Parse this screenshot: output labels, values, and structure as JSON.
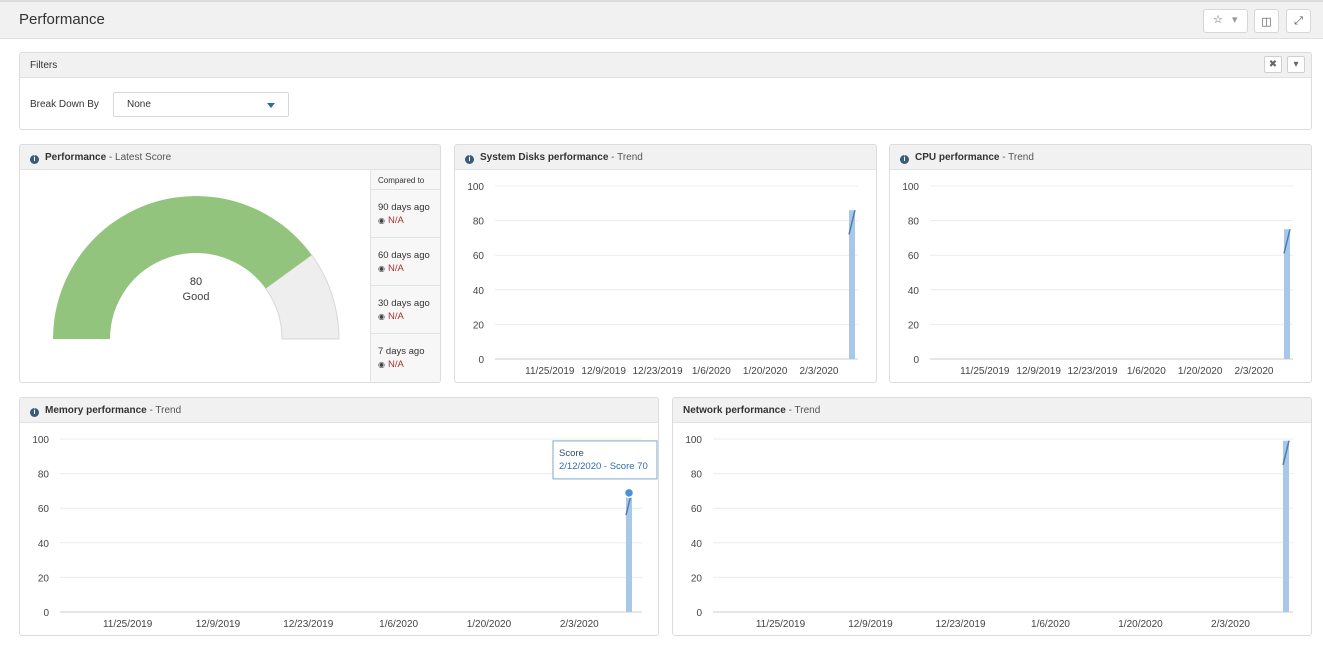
{
  "page": {
    "title": "Performance"
  },
  "toolbar": {
    "star_icon": "star-icon",
    "dropdown_icon": "chevron-down-icon",
    "layout_icon": "columns-icon",
    "expand_icon": "expand-icon"
  },
  "filters": {
    "title": "Filters",
    "breakdown_label": "Break Down By",
    "breakdown_value": "None"
  },
  "gauge_panel": {
    "title": "Performance",
    "subtitle": " - Latest Score",
    "score": "80",
    "score_label": "Good",
    "score_value": 80,
    "gauge_max": 100,
    "compare_header": "Compared to",
    "compare": [
      {
        "label": "90 days ago",
        "value": "N/A"
      },
      {
        "label": "60 days ago",
        "value": "N/A"
      },
      {
        "label": "30 days ago",
        "value": "N/A"
      },
      {
        "label": "7 days ago",
        "value": "N/A"
      }
    ]
  },
  "tooltip": {
    "title": "Score",
    "text": "2/12/2020 - Score 70"
  },
  "colors": {
    "gauge_fill": "#93c47d",
    "gauge_rest": "#eeeeee",
    "bar": "#a9c8e8",
    "line": "#4a7db3"
  },
  "chart_data": [
    {
      "id": "disks",
      "title": "System Disks performance",
      "subtitle": " - Trend",
      "type": "area",
      "x": [
        "11/25/2019",
        "12/9/2019",
        "12/23/2019",
        "1/6/2020",
        "1/20/2020",
        "2/3/2020"
      ],
      "yticks": [
        "100",
        "80",
        "60",
        "40",
        "20",
        "0"
      ],
      "ylim": [
        0,
        100
      ],
      "last_point": {
        "date": "2/12/2020",
        "value": 86
      }
    },
    {
      "id": "cpu",
      "title": "CPU performance",
      "subtitle": " - Trend",
      "type": "area",
      "x": [
        "11/25/2019",
        "12/9/2019",
        "12/23/2019",
        "1/6/2020",
        "1/20/2020",
        "2/3/2020"
      ],
      "yticks": [
        "100",
        "80",
        "60",
        "40",
        "20",
        "0"
      ],
      "ylim": [
        0,
        100
      ],
      "last_point": {
        "date": "2/12/2020",
        "value": 75
      }
    },
    {
      "id": "memory",
      "title": "Memory performance",
      "subtitle": " - Trend",
      "type": "area",
      "x": [
        "11/25/2019",
        "12/9/2019",
        "12/23/2019",
        "1/6/2020",
        "1/20/2020",
        "2/3/2020"
      ],
      "yticks": [
        "100",
        "80",
        "60",
        "40",
        "20",
        "0"
      ],
      "ylim": [
        0,
        100
      ],
      "last_point": {
        "date": "2/12/2020",
        "value": 70
      }
    },
    {
      "id": "network",
      "title": "Network performance",
      "subtitle": " - Trend",
      "type": "area",
      "x": [
        "11/25/2019",
        "12/9/2019",
        "12/23/2019",
        "1/6/2020",
        "1/20/2020",
        "2/3/2020"
      ],
      "yticks": [
        "100",
        "80",
        "60",
        "40",
        "20",
        "0"
      ],
      "ylim": [
        0,
        100
      ],
      "last_point": {
        "date": "2/12/2020",
        "value": 99
      }
    }
  ]
}
